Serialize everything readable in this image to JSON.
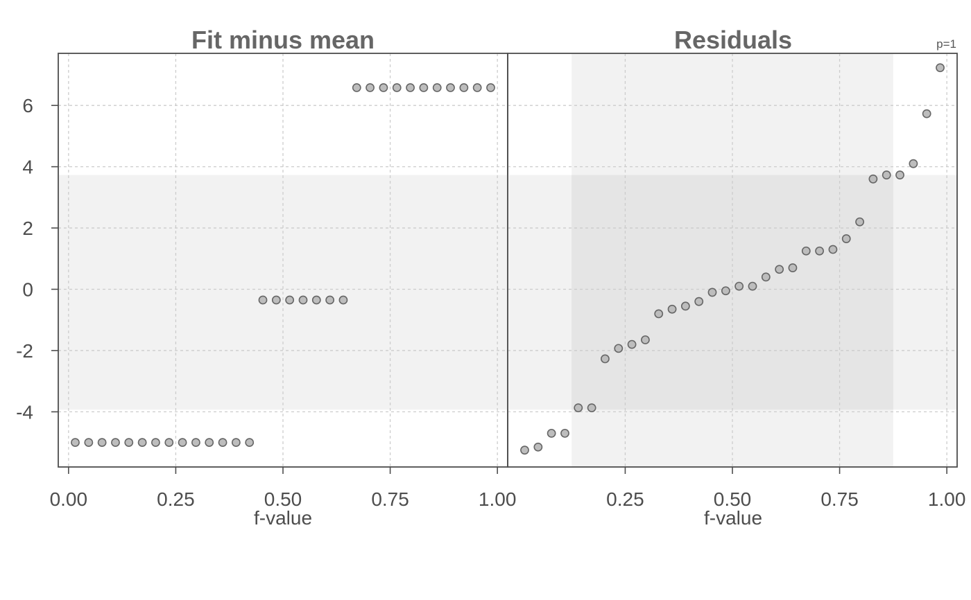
{
  "chart_data": {
    "type": "scatter",
    "note": "p=1",
    "ylim": [
      -5.8,
      7.7
    ],
    "yticks": [
      -4,
      -2,
      0,
      2,
      4,
      6
    ],
    "ytick_labels": [
      "-4",
      "-2",
      "0",
      "2",
      "4",
      "6"
    ],
    "grid": true,
    "colors": {
      "point_fill": "#bdbdbd",
      "point_stroke": "#666666",
      "band_light": "#f2f2f2",
      "band_overlap": "#e5e5e5",
      "grid": "#cccccc",
      "frame": "#4d4d4d"
    },
    "panels": [
      {
        "title": "Fit minus mean",
        "xlabel": "f-value",
        "xlim": [
          -0.024,
          1.024
        ],
        "xticks": [
          0.0,
          0.25,
          0.5,
          0.75,
          1.0
        ],
        "xtick_labels": [
          "0.00",
          "0.25",
          "0.50",
          "0.75",
          "1.00"
        ],
        "band_y": [
          -3.93,
          3.73
        ],
        "points": [
          [
            0.0156,
            -5.0
          ],
          [
            0.0469,
            -5.0
          ],
          [
            0.0781,
            -5.0
          ],
          [
            0.1094,
            -5.0
          ],
          [
            0.1406,
            -5.0
          ],
          [
            0.1719,
            -5.0
          ],
          [
            0.2031,
            -5.0
          ],
          [
            0.2344,
            -5.0
          ],
          [
            0.2656,
            -5.0
          ],
          [
            0.2969,
            -5.0
          ],
          [
            0.3281,
            -5.0
          ],
          [
            0.3594,
            -5.0
          ],
          [
            0.3906,
            -5.0
          ],
          [
            0.4219,
            -5.0
          ],
          [
            0.4531,
            -0.35
          ],
          [
            0.4844,
            -0.35
          ],
          [
            0.5156,
            -0.35
          ],
          [
            0.5469,
            -0.35
          ],
          [
            0.5781,
            -0.35
          ],
          [
            0.6094,
            -0.35
          ],
          [
            0.6406,
            -0.35
          ],
          [
            0.6719,
            6.58
          ],
          [
            0.7031,
            6.58
          ],
          [
            0.7344,
            6.58
          ],
          [
            0.7656,
            6.58
          ],
          [
            0.7969,
            6.58
          ],
          [
            0.8281,
            6.58
          ],
          [
            0.8594,
            6.58
          ],
          [
            0.8906,
            6.58
          ],
          [
            0.9219,
            6.58
          ],
          [
            0.9531,
            6.58
          ],
          [
            0.9844,
            6.58
          ]
        ]
      },
      {
        "title": "Residuals",
        "xlabel": "f-value",
        "xlim": [
          -0.024,
          1.024
        ],
        "xticks": [
          0.25,
          0.5,
          0.75,
          1.0
        ],
        "xtick_labels": [
          "0.25",
          "0.50",
          "0.75",
          "1.00"
        ],
        "band_y": [
          -3.93,
          3.73
        ],
        "band_x": [
          0.125,
          0.875
        ],
        "points": [
          [
            0.0156,
            -5.25
          ],
          [
            0.0469,
            -5.15
          ],
          [
            0.0781,
            -4.7
          ],
          [
            0.1094,
            -4.7
          ],
          [
            0.1406,
            -3.87
          ],
          [
            0.1719,
            -3.87
          ],
          [
            0.2031,
            -2.27
          ],
          [
            0.2344,
            -1.93
          ],
          [
            0.2656,
            -1.8
          ],
          [
            0.2969,
            -1.65
          ],
          [
            0.3281,
            -0.8
          ],
          [
            0.3594,
            -0.65
          ],
          [
            0.3906,
            -0.55
          ],
          [
            0.4219,
            -0.4
          ],
          [
            0.4531,
            -0.1
          ],
          [
            0.4844,
            -0.05
          ],
          [
            0.5156,
            0.1
          ],
          [
            0.5469,
            0.1
          ],
          [
            0.5781,
            0.4
          ],
          [
            0.6094,
            0.65
          ],
          [
            0.6406,
            0.7
          ],
          [
            0.6719,
            1.25
          ],
          [
            0.7031,
            1.25
          ],
          [
            0.7344,
            1.3
          ],
          [
            0.7656,
            1.65
          ],
          [
            0.7969,
            2.2
          ],
          [
            0.8281,
            3.6
          ],
          [
            0.8594,
            3.73
          ],
          [
            0.8906,
            3.73
          ],
          [
            0.9219,
            4.1
          ],
          [
            0.9531,
            5.73
          ],
          [
            0.9844,
            7.23
          ]
        ]
      }
    ]
  }
}
